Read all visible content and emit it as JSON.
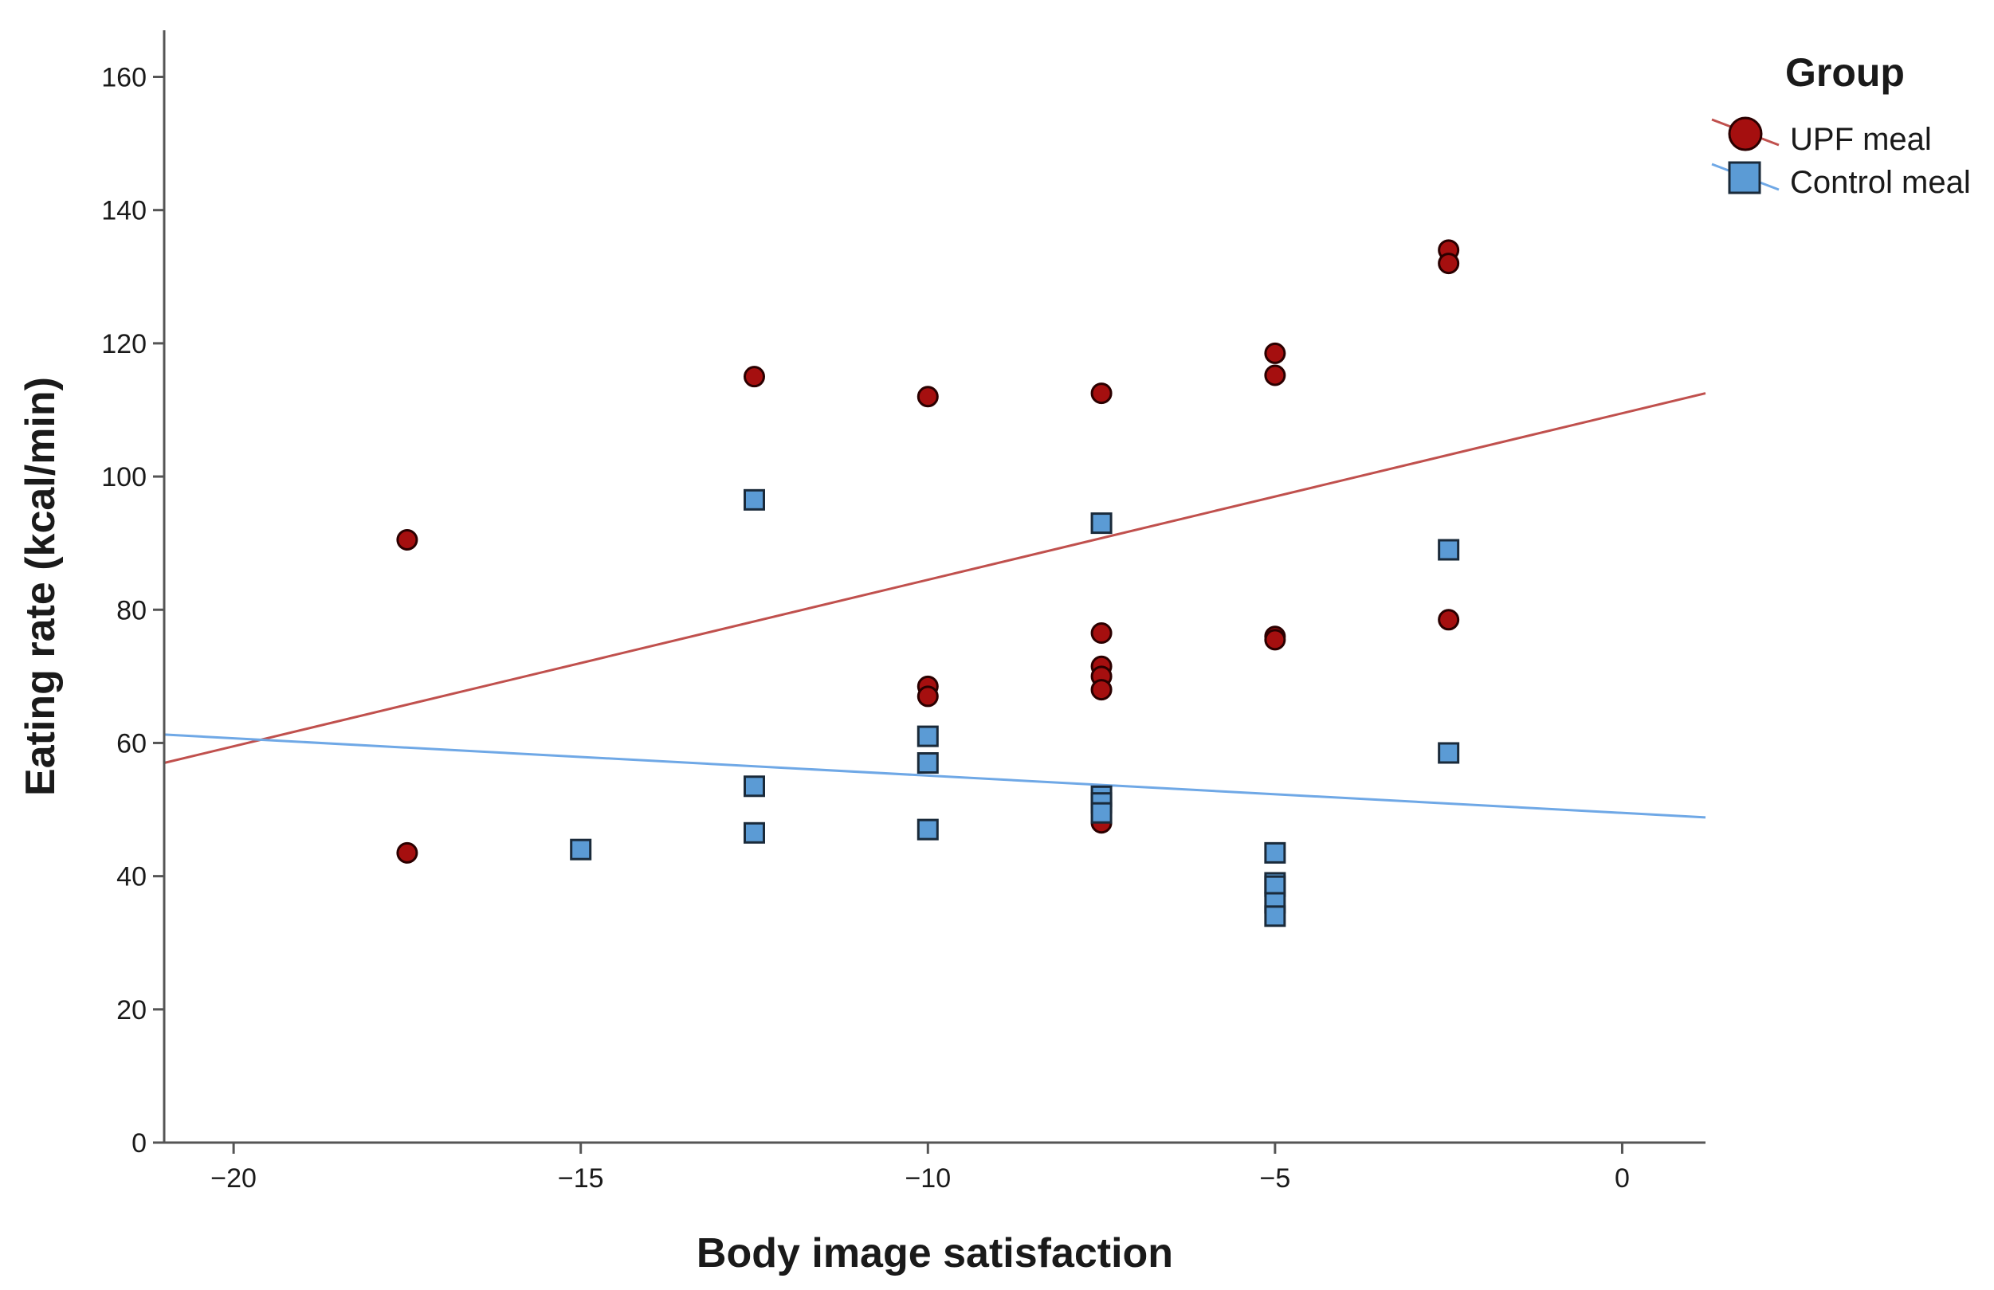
{
  "chart_data": {
    "type": "scatter",
    "title": "",
    "xlabel": "Body image satisfaction",
    "ylabel": "Eating rate (kcal/min)",
    "xlim": [
      -21,
      1.2
    ],
    "ylim": [
      0,
      167
    ],
    "x_ticks": [
      -20,
      -15,
      -10,
      -5,
      0
    ],
    "x_tick_labels": [
      "−20",
      "−15",
      "−10",
      "−5",
      "0"
    ],
    "y_ticks": [
      0,
      20,
      40,
      60,
      80,
      100,
      120,
      140,
      160
    ],
    "y_tick_labels": [
      "0",
      "20",
      "40",
      "60",
      "80",
      "100",
      "120",
      "140",
      "160"
    ],
    "grid": false,
    "legend": {
      "title": "Group",
      "position": "top-right"
    },
    "series": [
      {
        "name": "UPF meal",
        "marker": "circle",
        "color": "#a50f0f",
        "line_color": "#c0504d",
        "points": [
          [
            -17.5,
            90.5
          ],
          [
            -17.5,
            43.5
          ],
          [
            -12.5,
            115
          ],
          [
            -10,
            112
          ],
          [
            -10,
            68.5
          ],
          [
            -10,
            67
          ],
          [
            -7.5,
            112.5
          ],
          [
            -7.5,
            76.5
          ],
          [
            -7.5,
            71.5
          ],
          [
            -7.5,
            70
          ],
          [
            -7.5,
            68
          ],
          [
            -7.5,
            48
          ],
          [
            -5,
            118.5
          ],
          [
            -5,
            115.2
          ],
          [
            -5,
            76
          ],
          [
            -5,
            75.5
          ],
          [
            -2.5,
            134
          ],
          [
            -2.5,
            132
          ],
          [
            -2.5,
            78.5
          ]
        ],
        "fit": {
          "intercept": 109.5,
          "slope": 2.5
        }
      },
      {
        "name": "Control meal",
        "marker": "square",
        "color": "#5b9bd5",
        "line_color": "#6fa8e6",
        "points": [
          [
            -15,
            44
          ],
          [
            -12.5,
            96.5
          ],
          [
            -12.5,
            53.5
          ],
          [
            -12.5,
            46.5
          ],
          [
            -10,
            61
          ],
          [
            -10,
            57
          ],
          [
            -10,
            47
          ],
          [
            -7.5,
            93
          ],
          [
            -7.5,
            52
          ],
          [
            -7.5,
            51
          ],
          [
            -7.5,
            49.5
          ],
          [
            -5,
            43.5
          ],
          [
            -5,
            39
          ],
          [
            -5,
            38.5
          ],
          [
            -5,
            36
          ],
          [
            -5,
            34
          ],
          [
            -2.5,
            89
          ],
          [
            -2.5,
            58.5
          ]
        ],
        "fit": {
          "intercept": 49.5,
          "slope": -0.56
        }
      }
    ]
  }
}
